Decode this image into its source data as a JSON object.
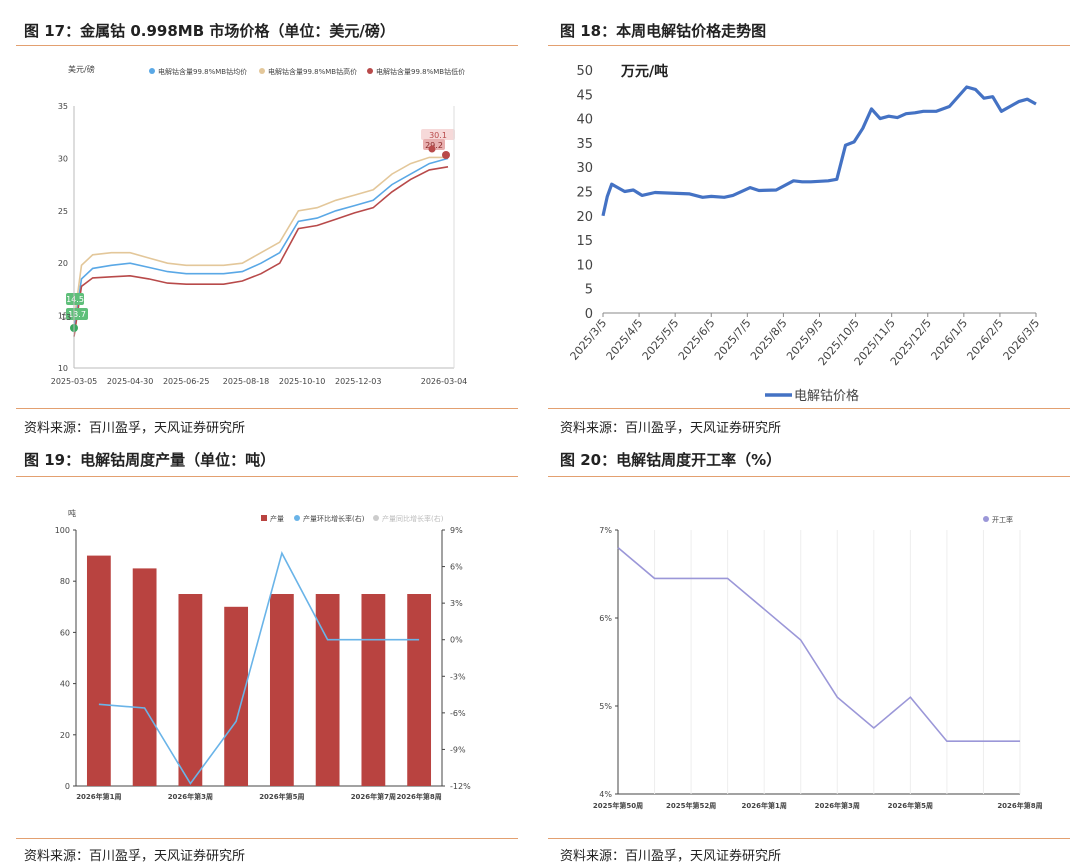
{
  "panels": [
    {
      "title": "图 17：金属钴 0.998MB 市场价格（单位：美元/磅）",
      "source": "资料来源：百川盈孚，天风证券研究所"
    },
    {
      "title": "图 18：本周电解钴价格走势图",
      "source": "资料来源：百川盈孚，天风证券研究所"
    },
    {
      "title": "图 19：电解钴周度产量（单位：吨）",
      "source": "资料来源：百川盈孚，天风证券研究所"
    },
    {
      "title": "图 20：电解钴周度开工率（%）",
      "source": "资料来源：百川盈孚，天风证券研究所"
    }
  ],
  "chart_data": [
    {
      "type": "line",
      "ylabel": "美元/磅",
      "ylim": [
        10,
        35
      ],
      "yticks": [
        "10",
        "15",
        "20",
        "25",
        "30",
        "35"
      ],
      "xticks": [
        "2025-03-05",
        "2025-04-30",
        "2025-06-25",
        "2025-08-18",
        "2025-10-10",
        "2025-12-03",
        "2026-03-04"
      ],
      "legend": "top",
      "colors": {
        "avg": "#5aa8e6",
        "high": "#e3c79a",
        "low": "#b84a4a"
      },
      "series": [
        {
          "name": "电解钴含量99.8%MB钴均价",
          "x": [
            0,
            0.02,
            0.05,
            0.1,
            0.15,
            0.2,
            0.25,
            0.3,
            0.35,
            0.4,
            0.45,
            0.5,
            0.55,
            0.6,
            0.65,
            0.7,
            0.75,
            0.8,
            0.85,
            0.9,
            0.95,
            1
          ],
          "values": [
            13.7,
            18.5,
            19.5,
            19.8,
            20.0,
            19.6,
            19.2,
            19.0,
            19.0,
            19.0,
            19.2,
            20.0,
            21.0,
            24.0,
            24.3,
            25.0,
            25.5,
            26.0,
            27.5,
            28.5,
            29.5,
            30.0
          ]
        },
        {
          "name": "电解钴含量99.8%MB钴高价",
          "x": [
            0,
            0.02,
            0.05,
            0.1,
            0.15,
            0.2,
            0.25,
            0.3,
            0.35,
            0.4,
            0.45,
            0.5,
            0.55,
            0.6,
            0.65,
            0.7,
            0.75,
            0.8,
            0.85,
            0.9,
            0.95,
            1
          ],
          "values": [
            14.5,
            19.8,
            20.8,
            21.0,
            21.0,
            20.5,
            20.0,
            19.8,
            19.8,
            19.8,
            20.0,
            21.0,
            22.0,
            25.0,
            25.3,
            26.0,
            26.5,
            27.0,
            28.5,
            29.5,
            30.1,
            30.1
          ]
        },
        {
          "name": "电解钴含量99.8%MB钴低价",
          "x": [
            0,
            0.02,
            0.05,
            0.1,
            0.15,
            0.2,
            0.25,
            0.3,
            0.35,
            0.4,
            0.45,
            0.5,
            0.55,
            0.6,
            0.65,
            0.7,
            0.75,
            0.8,
            0.85,
            0.9,
            0.95,
            1
          ],
          "values": [
            13.0,
            17.8,
            18.6,
            18.7,
            18.8,
            18.5,
            18.1,
            18.0,
            18.0,
            18.0,
            18.3,
            19.0,
            20.0,
            23.3,
            23.6,
            24.2,
            24.8,
            25.3,
            26.8,
            28.0,
            28.9,
            29.2
          ]
        }
      ],
      "labels_start": [
        "14.5",
        "13.7",
        "13"
      ],
      "labels_end": [
        "30.1",
        "29.2"
      ]
    },
    {
      "type": "line",
      "ylabel": "万元/吨",
      "ylim": [
        0,
        50
      ],
      "yticks": [
        "0",
        "5",
        "10",
        "15",
        "20",
        "25",
        "30",
        "35",
        "40",
        "45",
        "50"
      ],
      "xticks": [
        "2025/3/5",
        "2025/4/5",
        "2025/5/5",
        "2025/6/5",
        "2025/7/5",
        "2025/8/5",
        "2025/9/5",
        "2025/10/5",
        "2025/11/5",
        "2025/12/5",
        "2026/1/5",
        "2026/2/5",
        "2026/3/5"
      ],
      "legend": "bottom",
      "colors": {
        "line": "#4472c4"
      },
      "series": [
        {
          "name": "电解钴价格",
          "x": [
            0,
            0.01,
            0.02,
            0.03,
            0.05,
            0.07,
            0.09,
            0.12,
            0.2,
            0.23,
            0.25,
            0.28,
            0.3,
            0.34,
            0.36,
            0.4,
            0.44,
            0.46,
            0.48,
            0.52,
            0.54,
            0.56,
            0.58,
            0.6,
            0.62,
            0.64,
            0.66,
            0.68,
            0.7,
            0.72,
            0.74,
            0.77,
            0.8,
            0.84,
            0.86,
            0.88,
            0.9,
            0.92,
            0.94,
            0.96,
            0.98,
            1
          ],
          "values": [
            20,
            24,
            26.5,
            26,
            25,
            25.3,
            24.2,
            24.8,
            24.5,
            23.8,
            24,
            23.8,
            24.2,
            25.8,
            25.2,
            25.3,
            27.2,
            27,
            27,
            27.2,
            27.5,
            34.5,
            35.2,
            38,
            42,
            40,
            40.5,
            40.2,
            41,
            41.2,
            41.5,
            41.5,
            42.5,
            46.5,
            46,
            44.2,
            44.5,
            41.5,
            42.5,
            43.5,
            44,
            43
          ]
        }
      ]
    },
    {
      "type": "bar",
      "ylabel": "吨",
      "ylim": [
        0,
        100
      ],
      "yticks": [
        "0",
        "20",
        "40",
        "60",
        "80",
        "100"
      ],
      "y2ticks": [
        "-12%",
        "-9%",
        "-6%",
        "-3%",
        "0%",
        "3%",
        "6%",
        "9%"
      ],
      "xticks": [
        "2026年第1周",
        "2026年第3周",
        "2026年第5周",
        "2026年第7周",
        "2026年第8周"
      ],
      "legend": "top-right",
      "colors": {
        "bar": "#b94340",
        "line": "#6ab4e8"
      },
      "series": [
        {
          "name": "产量",
          "values": [
            90,
            85,
            75,
            70,
            75,
            75,
            75,
            75
          ]
        },
        {
          "name": "产量环比增长率(右)",
          "values": [
            -5.3,
            -5.6,
            -11.8,
            -6.7,
            7.1,
            0,
            0,
            0
          ]
        },
        {
          "name": "产量同比增长率(右)",
          "values": []
        }
      ]
    },
    {
      "type": "line",
      "ylim": [
        4,
        7
      ],
      "yticks": [
        "4%",
        "5%",
        "6%",
        "7%"
      ],
      "xticks": [
        "2025年第50周",
        "2025年第52周",
        "2026年第1周",
        "2026年第3周",
        "2026年第5周",
        "2026年第8周"
      ],
      "legend": "top-right",
      "colors": {
        "line": "#9b97d8"
      },
      "series": [
        {
          "name": "开工率",
          "values": [
            6.8,
            6.45,
            6.45,
            6.45,
            6.1,
            5.75,
            5.1,
            4.75,
            5.1,
            4.6,
            4.6,
            4.6
          ]
        }
      ]
    }
  ]
}
